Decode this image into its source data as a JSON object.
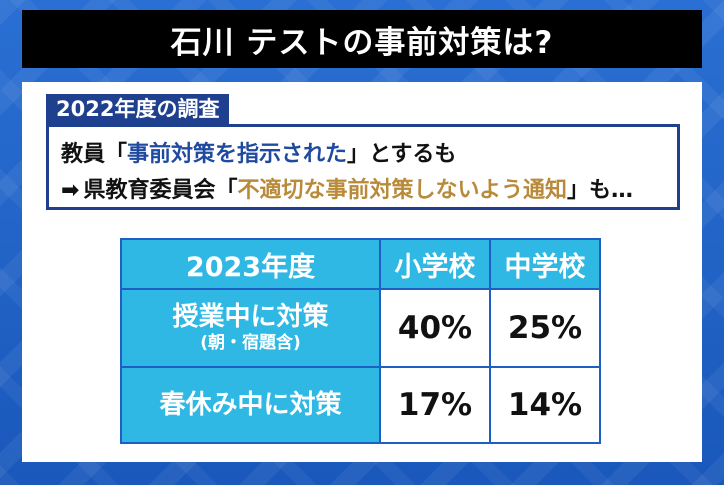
{
  "title": "石川 テストの事前対策は?",
  "survey": {
    "tag": "2022年度の調査",
    "line1": {
      "prefix": "教員",
      "open": "「",
      "quote": "事前対策を指示された",
      "close": "」",
      "suffix": "とするも"
    },
    "line2": {
      "arrow": "➡",
      "prefix": "県教育委員会",
      "open": "「",
      "quote": "不適切な事前対策しないよう通知",
      "close": "」",
      "suffix": "も…"
    }
  },
  "table": {
    "header": {
      "year": "2023年度",
      "elementary": "小学校",
      "junior_high": "中学校"
    },
    "rows": [
      {
        "label": "授業中に対策",
        "sub": "(朝・宿題含)",
        "elementary": "40%",
        "junior_high": "25%"
      },
      {
        "label": "春休み中に対策",
        "elementary": "17%",
        "junior_high": "14%"
      }
    ]
  },
  "colors": {
    "background": "#1d5fc3",
    "title_bar": "#000000",
    "tag": "#1f3f8f",
    "table_header": "#2fb8e3",
    "quote_blue": "#1f4a9f",
    "quote_gold": "#b88a3a"
  }
}
